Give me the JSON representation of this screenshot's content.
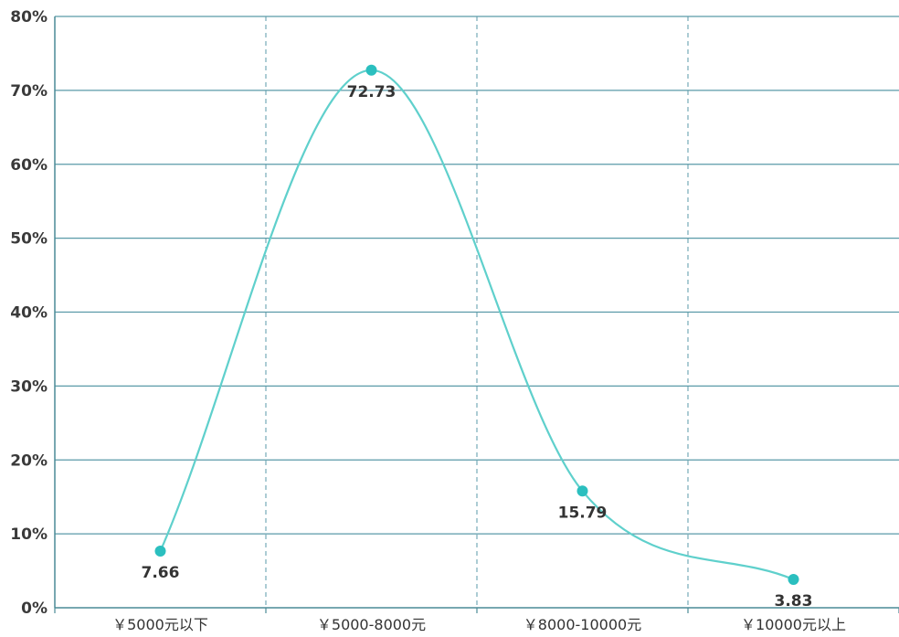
{
  "chart_data": {
    "type": "line",
    "smooth": true,
    "categories": [
      "￥5000元以下",
      "￥5000-8000元",
      "￥8000-10000元",
      "￥10000元以上"
    ],
    "series": [
      {
        "values": [
          7.66,
          72.73,
          15.79,
          3.83
        ]
      }
    ],
    "data_labels": [
      "7.66",
      "72.73",
      "15.79",
      "3.83"
    ],
    "ylim": [
      0,
      80
    ],
    "yticks": [
      0,
      10,
      20,
      30,
      40,
      50,
      60,
      70,
      80
    ],
    "ytick_labels": [
      "0%",
      "10%",
      "20%",
      "30%",
      "40%",
      "50%",
      "60%",
      "70%",
      "80%"
    ],
    "grid": {
      "horizontal": true,
      "vertical": "dashed"
    },
    "colors": {
      "line": "#5fd0cc",
      "point": "#2bbfbf",
      "grid": "#5a9aa8",
      "axis": "#4a8a96"
    }
  }
}
